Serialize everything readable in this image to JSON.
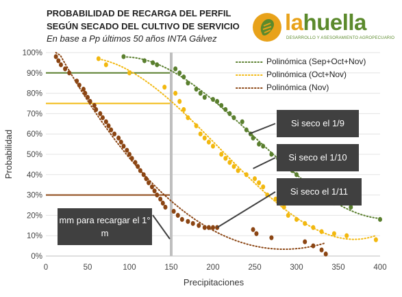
{
  "title_line1": "PROBABILIDAD DE RECARGA DEL PERFIL",
  "title_line2": "SEGÚN SECADO DEL CULTIVO DE SERVICIO",
  "subtitle": "En base a Pp últimos 50 años INTA Gálvez",
  "logo": {
    "word_la": "la",
    "word_huella": "huella",
    "tagline": "DESARROLLO Y ASESORAMIENTO AGROPECUARIO"
  },
  "callouts": {
    "sep": "Si seco el 1/9",
    "oct": "Si seco el 1/10",
    "nov": "Si seco el 1/11",
    "mm": "mm para recargar el 1° m"
  },
  "colors": {
    "sep": "#5a7f2e",
    "oct": "#f2b80f",
    "nov": "#8b4513",
    "ref": "#bfbfbf",
    "callout": "#404040"
  },
  "chart_data": {
    "type": "scatter",
    "xlabel": "Precipitaciones",
    "ylabel": "Probabilidad",
    "xlim": [
      0,
      400
    ],
    "ylim": [
      0,
      100
    ],
    "x_ticks": [
      0,
      50,
      100,
      150,
      200,
      250,
      300,
      350,
      400
    ],
    "y_ticks": [
      "0%",
      "10%",
      "20%",
      "30%",
      "40%",
      "50%",
      "60%",
      "70%",
      "80%",
      "90%",
      "100%"
    ],
    "legend_position": "top-right",
    "grid": "horizontal",
    "reference_x": 150,
    "reference_lines": [
      {
        "series": "sep",
        "y": 90
      },
      {
        "series": "oct",
        "y": 75
      },
      {
        "series": "nov",
        "y": 30
      }
    ],
    "series": [
      {
        "key": "sep",
        "name": "Polinómica (Sep+Oct+Nov)",
        "x": [
          93,
          118,
          128,
          133,
          155,
          160,
          165,
          170,
          180,
          185,
          190,
          200,
          205,
          210,
          215,
          220,
          225,
          235,
          240,
          245,
          248,
          255,
          260,
          270,
          278,
          285,
          290,
          295,
          300,
          310,
          315,
          320,
          330,
          345,
          365,
          400
        ],
        "y": [
          98,
          96,
          95,
          94,
          92,
          90,
          88,
          85,
          82,
          80,
          78,
          77,
          76,
          74,
          72,
          70,
          68,
          66,
          62,
          60,
          58,
          55,
          54,
          50,
          48,
          46,
          44,
          42,
          40,
          37,
          36,
          34,
          28,
          26,
          24,
          18
        ]
      },
      {
        "key": "oct",
        "name": "Polinómica (Oct+Nov)",
        "x": [
          63,
          72,
          100,
          142,
          155,
          160,
          165,
          170,
          180,
          185,
          190,
          195,
          200,
          210,
          215,
          220,
          225,
          230,
          240,
          250,
          255,
          260,
          265,
          275,
          280,
          285,
          290,
          300,
          310,
          320,
          330,
          345,
          360,
          395
        ],
        "y": [
          97,
          94,
          90,
          83,
          80,
          76,
          72,
          68,
          64,
          60,
          58,
          56,
          54,
          50,
          48,
          46,
          44,
          42,
          40,
          38,
          36,
          34,
          30,
          28,
          26,
          24,
          20,
          18,
          16,
          14,
          12,
          11,
          10,
          8
        ]
      },
      {
        "key": "nov",
        "name": "Polinómica (Nov)",
        "x": [
          12,
          15,
          18,
          23,
          28,
          37,
          40,
          45,
          47,
          50,
          53,
          58,
          60,
          65,
          68,
          72,
          75,
          78,
          82,
          87,
          90,
          93,
          97,
          100,
          103,
          107,
          110,
          113,
          117,
          120,
          123,
          127,
          130,
          133,
          137,
          140,
          143,
          153,
          158,
          163,
          170,
          176,
          183,
          190,
          195,
          200,
          205,
          248,
          252,
          270,
          310,
          320,
          330,
          335
        ],
        "y": [
          98,
          96,
          94,
          92,
          90,
          86,
          84,
          82,
          80,
          78,
          76,
          74,
          72,
          70,
          68,
          66,
          64,
          62,
          60,
          58,
          56,
          54,
          52,
          50,
          48,
          46,
          44,
          42,
          40,
          38,
          36,
          34,
          32,
          30,
          28,
          26,
          24,
          22,
          20,
          18,
          17,
          16,
          15,
          14,
          14,
          14,
          14,
          13,
          11,
          9,
          7,
          5,
          3,
          1
        ]
      }
    ]
  }
}
